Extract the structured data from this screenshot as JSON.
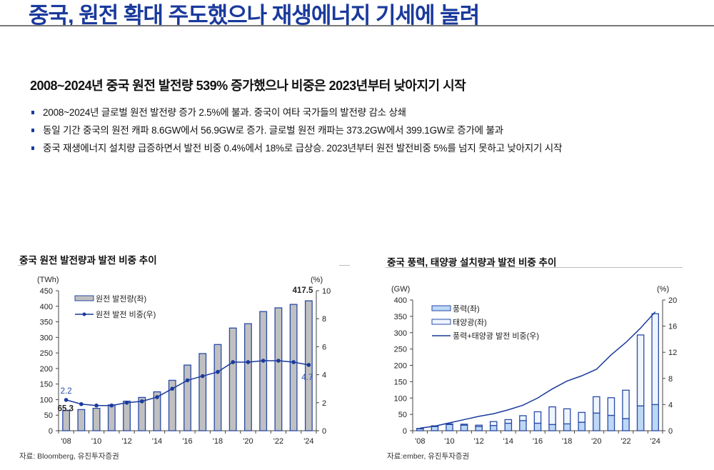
{
  "header": {
    "title": "중국, 원전 확대 주도했으나 재생에너지 기세에 눌려"
  },
  "headline": "2008~2024년 중국 원전 발전량 539% 증가했으나 비중은 2023년부터 낮아지기 시작",
  "bullets": [
    "2008~2024년 글로벌 원전 발전량 증가 2.5%에 불과. 중국이 여타 국가들의 발전량 감소 상쇄",
    "동일 기간 중국의 원전 캐파 8.6GW에서 56.9GW로 증가. 글로벌 원전 캐파는 373.2GW에서 399.1GW로 증가에 불과",
    "중국 재생에너지 설치량 급증하면서 발전 비중 0.4%에서 18%로 급상승. 2023년부터 원전 발전비중 5%를 넘지 못하고 낮아지기 시작"
  ],
  "chart_data": [
    {
      "type": "bar+line",
      "title": "중국 원전 발전량과 발전 비중 추이",
      "source": "자료: Bloomberg, 유진투자증권",
      "y_left_unit": "(TWh)",
      "y_right_unit": "(%)",
      "ylim_left": [
        0,
        450
      ],
      "ylim_right": [
        0,
        10
      ],
      "yticks_left": [
        "0",
        "50",
        "100",
        "150",
        "200",
        "250",
        "300",
        "350",
        "400",
        "450"
      ],
      "yticks_right": [
        "0",
        "2",
        "4",
        "6",
        "8",
        "10"
      ],
      "x": [
        2008,
        2009,
        2010,
        2011,
        2012,
        2013,
        2014,
        2015,
        2016,
        2017,
        2018,
        2019,
        2020,
        2021,
        2022,
        2023,
        2024
      ],
      "xtick_labels": [
        "'08",
        "'10",
        "'12",
        "'14",
        "'16",
        "'18",
        "'20",
        "'22",
        "'24"
      ],
      "series": [
        {
          "name": "원전 발전량(좌)",
          "type": "bar",
          "axis": "left",
          "values": [
            65.3,
            68,
            72,
            83,
            95,
            107,
            125,
            162,
            211,
            248,
            277,
            330,
            344,
            383,
            395,
            406,
            417.5
          ]
        },
        {
          "name": "원전 발전 비중(우)",
          "type": "line",
          "axis": "right",
          "values": [
            2.2,
            1.9,
            1.8,
            1.8,
            2.0,
            2.1,
            2.4,
            3.0,
            3.6,
            3.9,
            4.2,
            4.9,
            4.9,
            5.0,
            5.0,
            4.9,
            4.7
          ]
        }
      ],
      "annotations": [
        "2.2",
        "65.3",
        "417.5",
        "4.7"
      ]
    },
    {
      "type": "stacked-bar+line",
      "title": "중국 풍력, 태양광 설치량과 발전 비중 추이",
      "source": "자료:ember, 유진투자증권",
      "y_left_unit": "(GW)",
      "y_right_unit": "(%)",
      "ylim_left": [
        0,
        400
      ],
      "ylim_right": [
        0,
        20
      ],
      "yticks_left": [
        "0",
        "50",
        "100",
        "150",
        "200",
        "250",
        "300",
        "350",
        "400"
      ],
      "yticks_right": [
        "0",
        "4",
        "8",
        "12",
        "16",
        "20"
      ],
      "x": [
        2008,
        2009,
        2010,
        2011,
        2012,
        2013,
        2014,
        2015,
        2016,
        2017,
        2018,
        2019,
        2020,
        2021,
        2022,
        2023,
        2024
      ],
      "xtick_labels": [
        "'08",
        "'10",
        "'12",
        "'14",
        "'16",
        "'18",
        "'20",
        "'22",
        "'24"
      ],
      "series": [
        {
          "name": "풍력(좌)",
          "type": "bar",
          "axis": "left",
          "values": [
            6,
            13,
            19,
            17,
            13,
            16,
            23,
            31,
            23,
            19,
            21,
            26,
            54,
            47,
            37,
            76,
            80
          ]
        },
        {
          "name": "태양광(좌)",
          "type": "bar",
          "axis": "left",
          "values": [
            1,
            2,
            2,
            3,
            4,
            12,
            11,
            15,
            35,
            54,
            46,
            30,
            50,
            54,
            87,
            217,
            278
          ]
        },
        {
          "name": "풍력+태양광 발전 비중(우)",
          "type": "line",
          "axis": "right",
          "values": [
            0.4,
            0.7,
            1.2,
            1.7,
            2.2,
            2.6,
            3.2,
            3.9,
            5.0,
            6.4,
            7.6,
            8.4,
            9.4,
            11.6,
            13.5,
            15.7,
            18.2
          ]
        }
      ]
    }
  ],
  "colors": {
    "title": "#1a3a9c",
    "bar_grey": "#c0c0c0",
    "bar_edge": "#2a4aa8",
    "line": "#1a3a9c",
    "wind": "#bcd8f5",
    "solar": "#eef5fd"
  }
}
